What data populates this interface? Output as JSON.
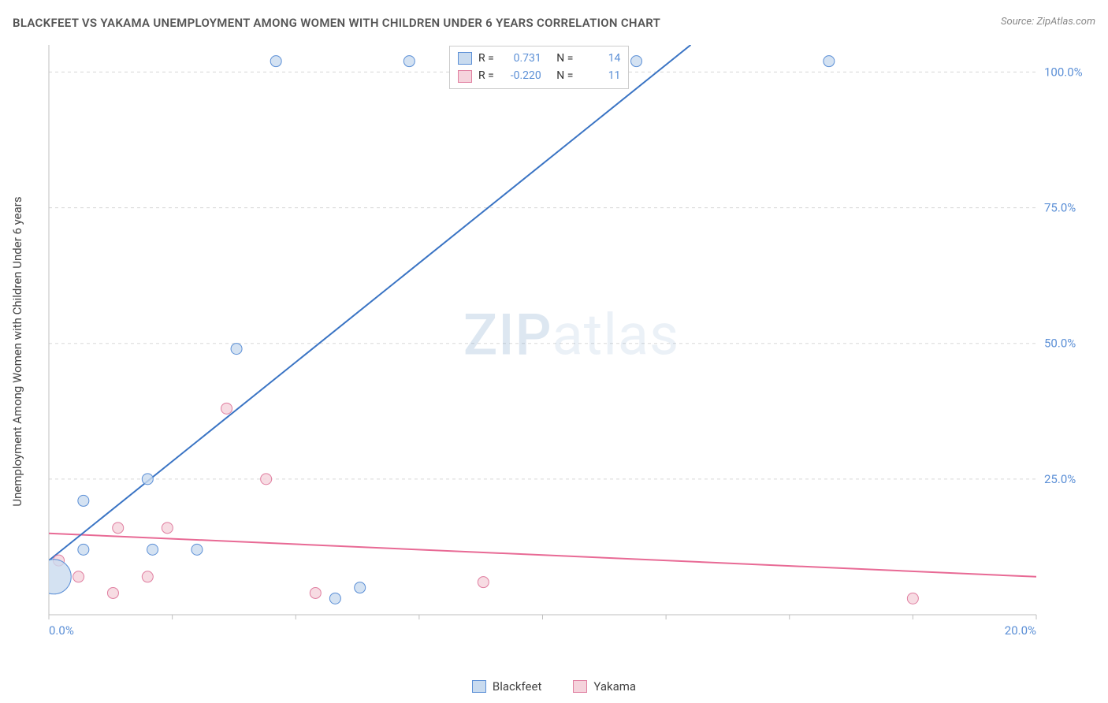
{
  "header": {
    "title": "BLACKFEET VS YAKAMA UNEMPLOYMENT AMONG WOMEN WITH CHILDREN UNDER 6 YEARS CORRELATION CHART",
    "source_label": "Source: ",
    "source_value": "ZipAtlas.com"
  },
  "watermark": {
    "part1": "ZIP",
    "part2": "atlas"
  },
  "axes": {
    "y_label": "Unemployment Among Women with Children Under 6 years",
    "x_min": 0,
    "x_max": 20,
    "y_min": 0,
    "y_max": 105,
    "x_ticks": [
      0,
      20
    ],
    "x_tick_labels": [
      "0.0%",
      "20.0%"
    ],
    "x_minor_ticks": [
      2.5,
      5.0,
      7.5,
      10.0,
      12.5,
      15.0,
      17.5
    ],
    "y_ticks": [
      25,
      50,
      75,
      100
    ],
    "y_tick_labels": [
      "25.0%",
      "50.0%",
      "75.0%",
      "100.0%"
    ],
    "tick_label_color": "#5b8fd6",
    "tick_label_fontsize": 15,
    "grid_color": "#d8d8d8",
    "axis_color": "#bfbfbf",
    "background_color": "#ffffff"
  },
  "series": {
    "blackfeet": {
      "label": "Blackfeet",
      "fill": "#c9dbef",
      "stroke": "#5b8fd6",
      "line_color": "#3a74c4",
      "line_width": 2,
      "R_label": "R =",
      "R": "0.731",
      "N_label": "N =",
      "N": "14",
      "regression": {
        "x1": 0,
        "y1": 10,
        "x2": 13.0,
        "y2": 105
      },
      "points": [
        {
          "x": 0.1,
          "y": 7,
          "r": 22
        },
        {
          "x": 0.7,
          "y": 21,
          "r": 7
        },
        {
          "x": 0.7,
          "y": 12,
          "r": 7
        },
        {
          "x": 2.0,
          "y": 25,
          "r": 7
        },
        {
          "x": 2.1,
          "y": 12,
          "r": 7
        },
        {
          "x": 3.0,
          "y": 12,
          "r": 7
        },
        {
          "x": 3.8,
          "y": 49,
          "r": 7
        },
        {
          "x": 4.6,
          "y": 102,
          "r": 7
        },
        {
          "x": 5.8,
          "y": 3,
          "r": 7
        },
        {
          "x": 6.3,
          "y": 5,
          "r": 7
        },
        {
          "x": 7.3,
          "y": 102,
          "r": 7
        },
        {
          "x": 11.3,
          "y": 102,
          "r": 7
        },
        {
          "x": 11.9,
          "y": 102,
          "r": 7
        },
        {
          "x": 15.8,
          "y": 102,
          "r": 7
        }
      ]
    },
    "yakama": {
      "label": "Yakama",
      "fill": "#f5d3dc",
      "stroke": "#e07ea0",
      "line_color": "#e86a95",
      "line_width": 2,
      "R_label": "R =",
      "R": "-0.220",
      "N_label": "N =",
      "N": "11",
      "regression": {
        "x1": 0,
        "y1": 15,
        "x2": 20,
        "y2": 7
      },
      "points": [
        {
          "x": 0.2,
          "y": 10,
          "r": 7
        },
        {
          "x": 0.6,
          "y": 7,
          "r": 7
        },
        {
          "x": 1.3,
          "y": 4,
          "r": 7
        },
        {
          "x": 1.4,
          "y": 16,
          "r": 7
        },
        {
          "x": 2.0,
          "y": 7,
          "r": 7
        },
        {
          "x": 2.4,
          "y": 16,
          "r": 7
        },
        {
          "x": 3.6,
          "y": 38,
          "r": 7
        },
        {
          "x": 4.4,
          "y": 25,
          "r": 7
        },
        {
          "x": 5.4,
          "y": 4,
          "r": 7
        },
        {
          "x": 8.8,
          "y": 6,
          "r": 7
        },
        {
          "x": 17.5,
          "y": 3,
          "r": 7
        }
      ]
    }
  }
}
